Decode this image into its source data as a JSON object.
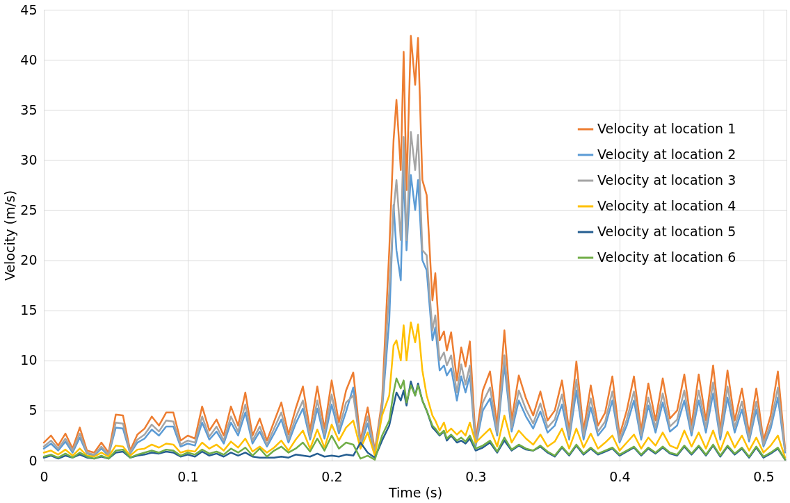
{
  "chart_data": {
    "type": "line",
    "xlabel": "Time (s)",
    "ylabel": "Velocity (m/s)",
    "xlim": [
      0,
      0.516
    ],
    "xticks": [
      0,
      0.1,
      0.2,
      0.3,
      0.4,
      0.5
    ],
    "ylim": [
      0,
      45
    ],
    "yticks": [
      0,
      5,
      10,
      15,
      20,
      25,
      30,
      35,
      40,
      45
    ],
    "grid": true,
    "legend": "right",
    "x": [
      0,
      0.005,
      0.01,
      0.015,
      0.02,
      0.025,
      0.03,
      0.035,
      0.04,
      0.045,
      0.05,
      0.055,
      0.06,
      0.065,
      0.07,
      0.075,
      0.08,
      0.085,
      0.09,
      0.095,
      0.1,
      0.105,
      0.11,
      0.115,
      0.12,
      0.125,
      0.13,
      0.135,
      0.14,
      0.145,
      0.15,
      0.155,
      0.16,
      0.165,
      0.17,
      0.175,
      0.18,
      0.185,
      0.19,
      0.195,
      0.2,
      0.205,
      0.21,
      0.215,
      0.22,
      0.225,
      0.23,
      0.235,
      0.24,
      0.243,
      0.245,
      0.248,
      0.25,
      0.252,
      0.255,
      0.258,
      0.26,
      0.263,
      0.266,
      0.27,
      0.272,
      0.275,
      0.278,
      0.28,
      0.283,
      0.287,
      0.29,
      0.293,
      0.296,
      0.3,
      0.305,
      0.31,
      0.315,
      0.32,
      0.325,
      0.33,
      0.335,
      0.34,
      0.345,
      0.35,
      0.355,
      0.36,
      0.365,
      0.37,
      0.375,
      0.38,
      0.385,
      0.39,
      0.395,
      0.4,
      0.405,
      0.41,
      0.415,
      0.42,
      0.425,
      0.43,
      0.435,
      0.44,
      0.445,
      0.45,
      0.455,
      0.46,
      0.465,
      0.47,
      0.475,
      0.48,
      0.485,
      0.49,
      0.495,
      0.5,
      0.505,
      0.51,
      0.515
    ],
    "series": [
      {
        "name": "Velocity at location 1",
        "color": "#ed7d31",
        "values": [
          1.8,
          2.5,
          1.5,
          2.7,
          1.2,
          3.3,
          1.0,
          0.8,
          1.8,
          0.8,
          4.6,
          4.5,
          1.0,
          2.6,
          3.2,
          4.4,
          3.5,
          4.8,
          4.8,
          2.0,
          2.5,
          2.2,
          5.4,
          3.0,
          4.1,
          2.5,
          5.4,
          3.5,
          6.8,
          2.5,
          4.2,
          2.0,
          3.9,
          5.8,
          2.6,
          5.2,
          7.4,
          3.0,
          7.4,
          3.2,
          8.0,
          3.8,
          7.0,
          8.8,
          2.0,
          5.3,
          1.0,
          6.0,
          21,
          32,
          36,
          29,
          40.8,
          27,
          42.4,
          37.5,
          42.2,
          28,
          26.5,
          16,
          18.7,
          12,
          12.9,
          11,
          12.8,
          8,
          11.3,
          9.4,
          11.9,
          2,
          7,
          8.9,
          3.5,
          13,
          4.0,
          8.5,
          6.2,
          4.5,
          6.9,
          4.0,
          5,
          8.0,
          3,
          9.9,
          3,
          7.5,
          3.5,
          4.8,
          8.4,
          2.5,
          5,
          8.4,
          3,
          7.7,
          4.0,
          8.2,
          4.2,
          5,
          8.6,
          3.5,
          8.6,
          4,
          9.5,
          3,
          9.0,
          4,
          7.2,
          2.7,
          7.2,
          2,
          4.5,
          8.9,
          1.2
        ]
      },
      {
        "name": "Velocity at location 2",
        "color": "#5b9bd5",
        "values": [
          1.2,
          1.7,
          1.0,
          1.9,
          0.8,
          2.3,
          0.7,
          0.5,
          1.2,
          0.5,
          3.3,
          3.2,
          0.7,
          1.8,
          2.2,
          3.1,
          2.5,
          3.4,
          3.4,
          1.4,
          1.7,
          1.5,
          3.8,
          2.1,
          2.9,
          1.7,
          3.8,
          2.5,
          4.8,
          1.7,
          2.9,
          1.4,
          2.7,
          4.1,
          1.8,
          3.7,
          5.2,
          2.1,
          5.2,
          2.2,
          5.6,
          2.7,
          4.9,
          7.3,
          1.4,
          3.7,
          0.7,
          5.0,
          14,
          25.5,
          21,
          18,
          29,
          21,
          28.5,
          25,
          28,
          20,
          19,
          12,
          13.3,
          9,
          9.5,
          8.5,
          9.2,
          6,
          8.4,
          6.8,
          8.5,
          1.4,
          5.0,
          6.2,
          2.5,
          9.5,
          2.9,
          6.0,
          4.4,
          3.2,
          4.9,
          2.8,
          3.5,
          5.6,
          2.1,
          7.0,
          2.1,
          5.3,
          2.5,
          3.4,
          6.0,
          1.8,
          3.5,
          6.0,
          2.1,
          5.5,
          2.8,
          5.8,
          2.9,
          3.5,
          6.0,
          2.5,
          6.0,
          2.8,
          6.7,
          2.1,
          6.3,
          2.8,
          5.1,
          1.9,
          5.1,
          1.4,
          3.2,
          6.3,
          0.8
        ]
      },
      {
        "name": "Velocity at location 3",
        "color": "#a5a5a5",
        "values": [
          1.4,
          2.0,
          1.2,
          2.2,
          1.0,
          2.7,
          0.8,
          0.6,
          1.4,
          0.6,
          3.8,
          3.7,
          0.8,
          2.1,
          2.6,
          3.6,
          2.9,
          4.0,
          3.9,
          1.6,
          2.0,
          1.8,
          4.4,
          2.4,
          3.4,
          2.0,
          4.4,
          2.9,
          5.6,
          2.0,
          3.4,
          1.6,
          3.2,
          4.8,
          2.1,
          4.3,
          6.0,
          2.4,
          6.0,
          2.6,
          6.6,
          3.1,
          5.8,
          6.5,
          1.6,
          4.4,
          0.8,
          5.5,
          17,
          25,
          28,
          22,
          32.3,
          22,
          32.8,
          29,
          32.5,
          21,
          20.5,
          13,
          14.5,
          10,
          10.8,
          9.5,
          10.5,
          6.8,
          9.6,
          7.6,
          9.5,
          1.6,
          5.8,
          7.3,
          2.8,
          10.5,
          3.3,
          7.0,
          5.1,
          3.7,
          5.7,
          3.3,
          4.1,
          6.6,
          2.5,
          8.1,
          2.5,
          6.2,
          2.9,
          3.9,
          6.9,
          2.0,
          4.1,
          6.9,
          2.5,
          6.3,
          3.3,
          6.7,
          3.4,
          4.1,
          7.0,
          2.9,
          7.0,
          3.3,
          7.8,
          2.5,
          7.4,
          3.3,
          5.9,
          2.2,
          5.9,
          1.6,
          3.7,
          7.3,
          1.0
        ]
      },
      {
        "name": "Velocity at location 4",
        "color": "#ffc000",
        "values": [
          0.8,
          1.0,
          0.6,
          1.1,
          0.5,
          1.2,
          0.5,
          0.4,
          0.8,
          0.4,
          1.5,
          1.4,
          0.5,
          1.1,
          1.2,
          1.6,
          1.3,
          1.7,
          1.6,
          0.8,
          1.0,
          0.9,
          1.8,
          1.2,
          1.6,
          1.0,
          1.9,
          1.3,
          2.2,
          0.9,
          1.4,
          0.8,
          1.3,
          2.0,
          1.0,
          2.1,
          3.0,
          1.2,
          3.1,
          1.3,
          3.6,
          2.0,
          3.3,
          4.0,
          1.2,
          2.8,
          0.5,
          4.5,
          6.5,
          11.5,
          12.0,
          10.0,
          13.5,
          10.0,
          13.8,
          11.8,
          13.6,
          9.0,
          6.5,
          4.5,
          4.0,
          3.0,
          3.8,
          2.8,
          3.2,
          2.6,
          3.0,
          2.5,
          3.8,
          1.8,
          2.5,
          3.2,
          1.4,
          4.5,
          1.8,
          3.0,
          2.2,
          1.6,
          2.6,
          1.4,
          1.9,
          3.2,
          1.2,
          3.2,
          1.3,
          2.7,
          1.2,
          1.8,
          2.5,
          1.0,
          1.8,
          2.6,
          1.2,
          2.3,
          1.5,
          2.8,
          1.5,
          1.2,
          3.0,
          1.4,
          2.8,
          1.2,
          3.0,
          1.0,
          2.9,
          1.3,
          2.5,
          1.0,
          2.3,
          0.8,
          1.5,
          2.5,
          0.3
        ]
      },
      {
        "name": "Velocity at location 5",
        "color": "#255e91",
        "values": [
          0.3,
          0.5,
          0.2,
          0.5,
          0.3,
          0.6,
          0.3,
          0.2,
          0.4,
          0.2,
          0.8,
          0.9,
          0.3,
          0.5,
          0.6,
          0.8,
          0.7,
          0.9,
          0.8,
          0.4,
          0.6,
          0.4,
          0.9,
          0.5,
          0.7,
          0.4,
          0.8,
          0.5,
          0.8,
          0.4,
          0.3,
          0.3,
          0.3,
          0.4,
          0.3,
          0.6,
          0.5,
          0.4,
          0.7,
          0.4,
          0.5,
          0.4,
          0.6,
          0.5,
          1.8,
          0.8,
          0.3,
          2.0,
          3.5,
          5.5,
          6.8,
          6.0,
          7.0,
          5.5,
          7.9,
          6.5,
          7.7,
          6.0,
          5.0,
          3.3,
          3.0,
          2.5,
          2.9,
          2.0,
          2.5,
          1.8,
          2.0,
          1.7,
          2.2,
          1.0,
          1.3,
          1.8,
          0.8,
          2.0,
          1.0,
          1.5,
          1.1,
          1.0,
          1.4,
          0.8,
          0.4,
          1.3,
          0.5,
          1.5,
          0.6,
          1.2,
          0.6,
          0.9,
          1.2,
          0.5,
          0.9,
          1.3,
          0.5,
          1.2,
          0.7,
          1.3,
          0.7,
          0.5,
          1.4,
          0.6,
          1.4,
          0.5,
          1.5,
          0.4,
          1.4,
          0.6,
          1.2,
          0.3,
          1.3,
          0.3,
          0.7,
          1.2,
          0.1
        ]
      },
      {
        "name": "Velocity at location 6",
        "color": "#70ad47",
        "values": [
          0.4,
          0.6,
          0.3,
          0.7,
          0.3,
          0.8,
          0.4,
          0.2,
          0.5,
          0.2,
          1.0,
          1.1,
          0.3,
          0.6,
          0.8,
          1.0,
          0.8,
          1.1,
          1.0,
          0.5,
          0.8,
          0.6,
          1.1,
          0.7,
          0.9,
          0.6,
          1.2,
          0.8,
          1.3,
          0.5,
          1.2,
          0.4,
          1.0,
          1.4,
          0.8,
          1.2,
          1.8,
          0.9,
          2.2,
          1.0,
          2.5,
          1.2,
          1.8,
          1.6,
          0.2,
          0.5,
          0.1,
          2.5,
          4.0,
          6.8,
          8.2,
          7.2,
          8.0,
          5.8,
          7.5,
          6.5,
          7.5,
          6.0,
          5.0,
          3.5,
          3.2,
          2.6,
          3.0,
          2.2,
          2.6,
          2.0,
          2.3,
          1.9,
          2.5,
          1.2,
          1.5,
          2.0,
          0.9,
          2.3,
          1.1,
          1.6,
          1.2,
          1.0,
          1.5,
          0.9,
          0.5,
          1.4,
          0.6,
          1.6,
          0.7,
          1.3,
          0.7,
          1.0,
          1.3,
          0.6,
          1.0,
          1.4,
          0.6,
          1.3,
          0.8,
          1.4,
          0.8,
          0.6,
          1.5,
          0.7,
          1.5,
          0.6,
          1.6,
          0.5,
          1.5,
          0.7,
          1.3,
          0.4,
          1.4,
          0.4,
          0.8,
          1.3,
          0.1
        ]
      }
    ]
  }
}
